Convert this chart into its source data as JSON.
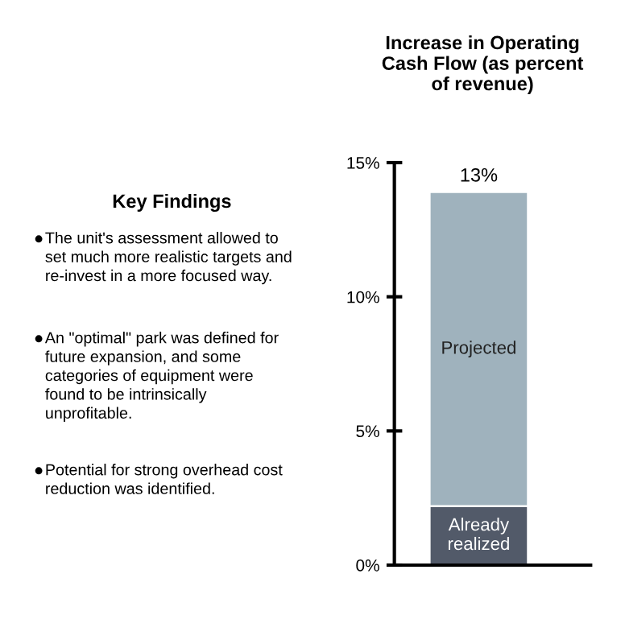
{
  "chart_data": [
    {
      "type": "other",
      "title": "Key Findings",
      "annotations": [
        "The unit's assessment allowed to set much more realistic targets and re-invest in a more focused way.",
        "An \"optimal\" park was defined for future expansion, and some categories of equipment were found to be intrinsically unprofitable.",
        "Potential for strong overhead cost reduction was identified."
      ]
    },
    {
      "type": "bar",
      "title": "Increase in Operating Cash Flow (as percent of revenue)",
      "categories": [
        null
      ],
      "stacked": true,
      "series": [
        {
          "name": "Already realized",
          "color": "#525a69",
          "values": [
            2.2
          ]
        },
        {
          "name": "Projected",
          "color": "#9fb2bd",
          "values": [
            11.7
          ]
        }
      ],
      "totals": [
        "13%"
      ],
      "ylim": [
        0,
        15
      ],
      "yticks": [
        {
          "value": 0,
          "label": "0%"
        },
        {
          "value": 5,
          "label": "5%"
        },
        {
          "value": 10,
          "label": "10%"
        },
        {
          "value": 15,
          "label": "15%"
        }
      ],
      "grid": false,
      "legend": false
    }
  ]
}
